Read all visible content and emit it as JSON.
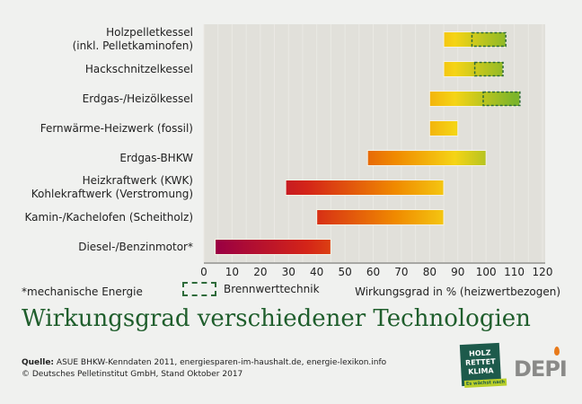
{
  "chart_data": {
    "type": "bar",
    "orientation": "horizontal-range",
    "title": "Wirkungsgrad verschiedener Technologien",
    "xlabel": "Wirkungsgrad in % (heizwertbezogen)",
    "xlim": [
      0,
      120
    ],
    "xticks": [
      "0",
      "10",
      "20",
      "30",
      "40",
      "50",
      "60",
      "70",
      "80",
      "90",
      "100",
      "110",
      "120"
    ],
    "grid": true,
    "categories": [
      [
        "Holzpelletkessel",
        "(inkl. Pelletkaminofen)"
      ],
      [
        "Hackschnitzelkessel"
      ],
      [
        "Erdgas-/Heizölkessel"
      ],
      [
        "Fernwärme-Heizwerk (fossil)"
      ],
      [
        "Erdgas-BHKW"
      ],
      [
        "Heizkraftwerk (KWK)",
        "Kohlekraftwerk (Verstromung)"
      ],
      [
        "Kamin-/Kachelofen (Scheitholz)"
      ],
      [
        "Diesel-/Benzinmotor*"
      ]
    ],
    "ranges": [
      [
        85,
        107
      ],
      [
        85,
        106
      ],
      [
        80,
        112
      ],
      [
        80,
        90
      ],
      [
        58,
        100
      ],
      [
        29,
        85
      ],
      [
        40,
        85
      ],
      [
        4,
        45
      ]
    ],
    "brennwert_ranges": [
      [
        95,
        107
      ],
      [
        96,
        106
      ],
      [
        99,
        112
      ],
      null,
      null,
      null,
      null,
      null
    ],
    "legend": {
      "brennwert": "Brennwerttechnik"
    },
    "note": "*mechanische Energie",
    "colors": {
      "low": "#9b0042",
      "mid_red": "#d42418",
      "orange": "#f08a00",
      "yellow": "#f5d415",
      "green": "#7db52a",
      "dash": "#2e6b3a",
      "plot_bg": "#e1e0da"
    }
  },
  "footer": {
    "source_label": "Quelle:",
    "source_text": " ASUE BHKW-Kenndaten 2011, energiesparen-im-haushalt.de, energie-lexikon.info",
    "copyright": "© Deutsches Pelletinstitut GmbH, Stand Oktober 2017"
  },
  "logos": {
    "holz_rettet_klima": "HOLZ RETTET KLIMA Es wächst nach",
    "depi": "DEPI"
  }
}
